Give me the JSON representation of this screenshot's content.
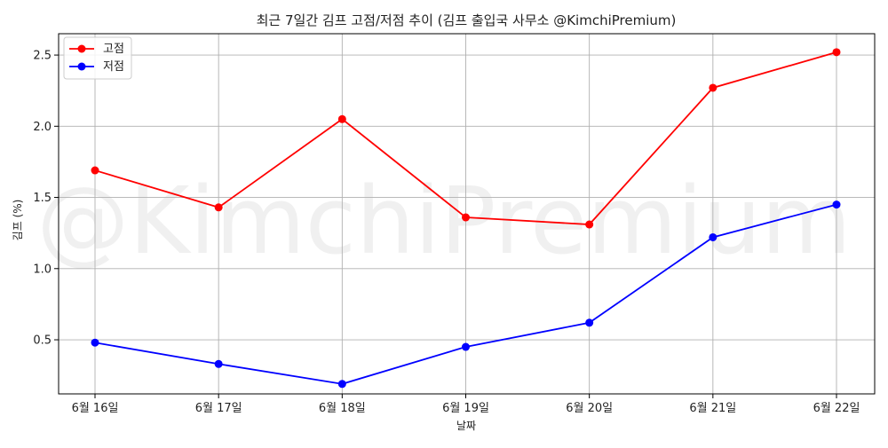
{
  "chart_data": {
    "type": "line",
    "title": "최근 7일간 김프 고점/저점 추이 (김프 출입국 사무소 @KimchiPremium)",
    "xlabel": "날짜",
    "ylabel": "김프 (%)",
    "watermark": "@KimchiPremium",
    "categories": [
      "6월 16일",
      "6월 17일",
      "6월 18일",
      "6월 19일",
      "6월 20일",
      "6월 21일",
      "6월 22일"
    ],
    "ylim": [
      0.12,
      2.65
    ],
    "yticks": [
      0.5,
      1.0,
      1.5,
      2.0,
      2.5
    ],
    "ytick_labels": [
      "0.5",
      "1.0",
      "1.5",
      "2.0",
      "2.5"
    ],
    "grid": true,
    "legend_position": "top-left",
    "series": [
      {
        "name": "고점",
        "color": "#ff0000",
        "values": [
          1.69,
          1.43,
          2.05,
          1.36,
          1.31,
          2.27,
          2.52
        ]
      },
      {
        "name": "저점",
        "color": "#0000ff",
        "values": [
          0.48,
          0.33,
          0.19,
          0.45,
          0.62,
          1.22,
          1.45
        ]
      }
    ]
  }
}
